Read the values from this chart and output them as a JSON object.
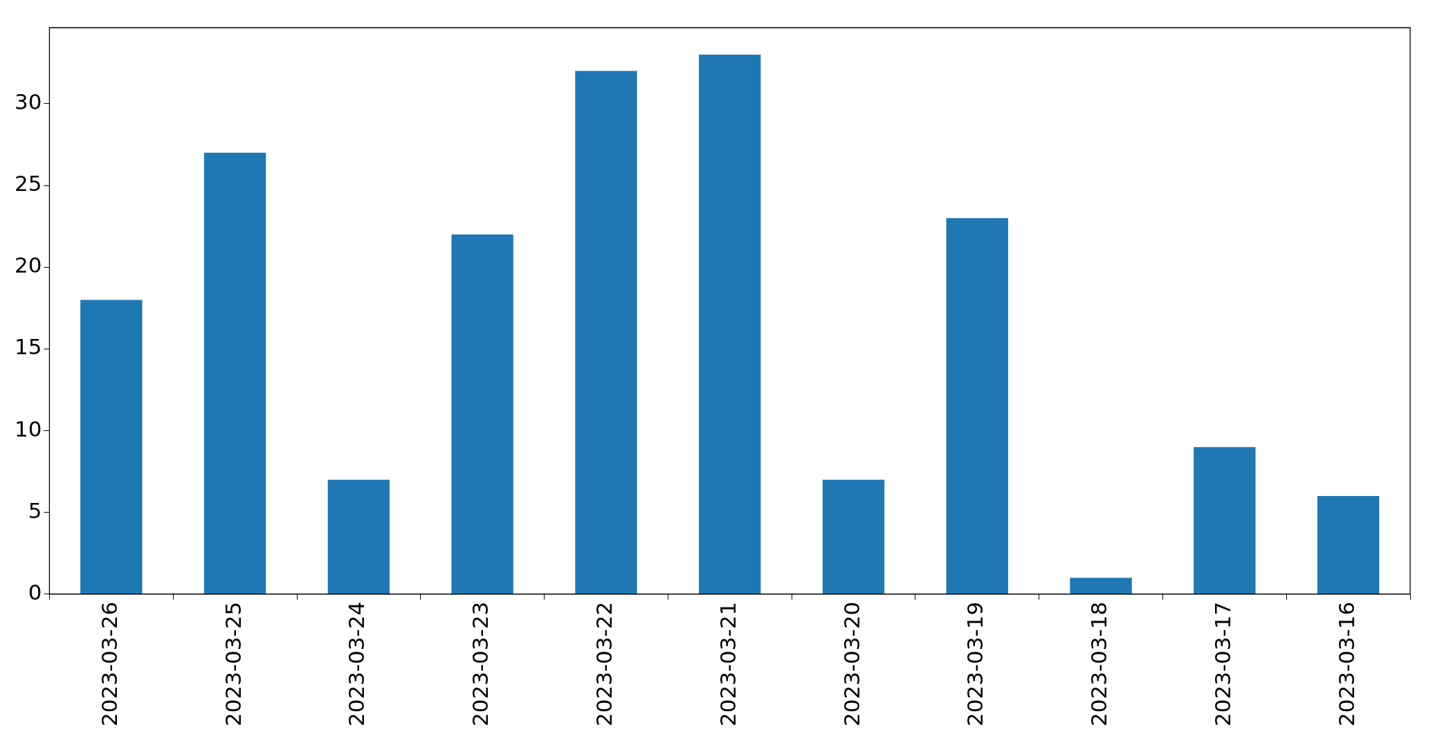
{
  "chart_data": {
    "type": "bar",
    "categories": [
      "2023-03-26",
      "2023-03-25",
      "2023-03-24",
      "2023-03-23",
      "2023-03-22",
      "2023-03-21",
      "2023-03-20",
      "2023-03-19",
      "2023-03-18",
      "2023-03-17",
      "2023-03-16"
    ],
    "values": [
      18,
      27,
      7,
      22,
      32,
      33,
      7,
      23,
      1,
      9,
      6
    ],
    "color": "#1f77b4",
    "ylim": [
      0,
      34.65
    ],
    "yticks": [
      0,
      5,
      10,
      15,
      20,
      25,
      30
    ]
  }
}
